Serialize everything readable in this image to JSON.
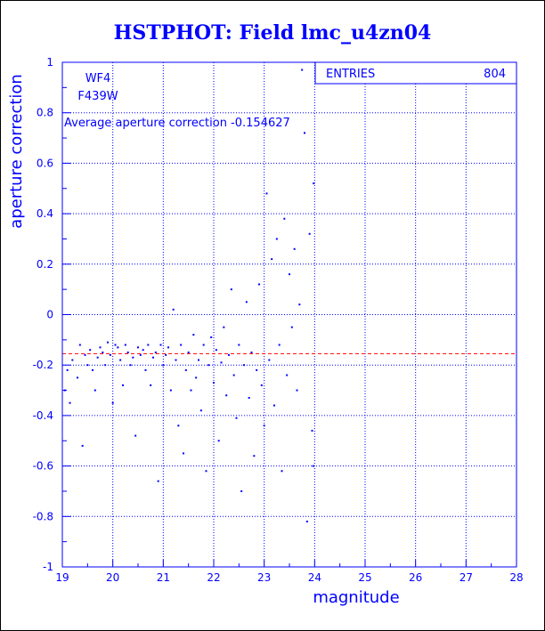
{
  "title": "HSTPHOT: Field lmc_u4zn04",
  "chart_data": {
    "type": "scatter",
    "xlabel": "magnitude",
    "ylabel": "aperture correction",
    "xlim": [
      19,
      28
    ],
    "ylim": [
      -1,
      1
    ],
    "xticks": [
      "19",
      "20",
      "21",
      "22",
      "23",
      "24",
      "25",
      "26",
      "27",
      "28"
    ],
    "yticks": [
      "-1",
      "-0.8",
      "-0.6",
      "-0.4",
      "-0.2",
      "0",
      "0.2",
      "0.4",
      "0.6",
      "0.8",
      "1"
    ],
    "grid": true,
    "annotations": {
      "chip": "WF4",
      "filter": "F439W",
      "average_label": "Average aperture correction -0.154627"
    },
    "stats": {
      "label": "ENTRIES",
      "value": "804"
    },
    "reference_line": {
      "y": -0.154627,
      "color": "#ff0000"
    },
    "series": [
      {
        "color": "#0000ff",
        "points": [
          [
            19.05,
            -0.3
          ],
          [
            19.1,
            -0.22
          ],
          [
            19.15,
            -0.35
          ],
          [
            19.2,
            -0.18
          ],
          [
            19.3,
            -0.25
          ],
          [
            19.35,
            -0.12
          ],
          [
            19.4,
            -0.52
          ],
          [
            19.45,
            -0.16
          ],
          [
            19.5,
            -0.2
          ],
          [
            19.55,
            -0.14
          ],
          [
            19.6,
            -0.22
          ],
          [
            19.65,
            -0.3
          ],
          [
            19.7,
            -0.17
          ],
          [
            19.75,
            -0.13
          ],
          [
            19.8,
            -0.15
          ],
          [
            19.85,
            -0.2
          ],
          [
            19.9,
            -0.11
          ],
          [
            19.95,
            -0.16
          ],
          [
            20.0,
            -0.35
          ],
          [
            20.05,
            -0.12
          ],
          [
            20.1,
            -0.13
          ],
          [
            20.15,
            -0.18
          ],
          [
            20.2,
            -0.28
          ],
          [
            20.25,
            -0.12
          ],
          [
            20.3,
            -0.15
          ],
          [
            20.35,
            -0.2
          ],
          [
            20.4,
            -0.17
          ],
          [
            20.45,
            -0.48
          ],
          [
            20.5,
            -0.13
          ],
          [
            20.55,
            -0.16
          ],
          [
            20.6,
            -0.14
          ],
          [
            20.65,
            -0.22
          ],
          [
            20.7,
            -0.12
          ],
          [
            20.75,
            -0.28
          ],
          [
            20.8,
            -0.17
          ],
          [
            20.85,
            -0.15
          ],
          [
            20.9,
            -0.66
          ],
          [
            20.95,
            -0.12
          ],
          [
            21.0,
            -0.2
          ],
          [
            21.05,
            -0.16
          ],
          [
            21.1,
            -0.13
          ],
          [
            21.15,
            -0.3
          ],
          [
            21.2,
            0.02
          ],
          [
            21.25,
            -0.18
          ],
          [
            21.3,
            -0.44
          ],
          [
            21.35,
            -0.12
          ],
          [
            21.4,
            -0.55
          ],
          [
            21.45,
            -0.22
          ],
          [
            21.5,
            -0.15
          ],
          [
            21.55,
            -0.3
          ],
          [
            21.6,
            -0.08
          ],
          [
            21.65,
            -0.25
          ],
          [
            21.7,
            -0.18
          ],
          [
            21.75,
            -0.38
          ],
          [
            21.8,
            -0.12
          ],
          [
            21.85,
            -0.62
          ],
          [
            21.9,
            -0.2
          ],
          [
            21.95,
            -0.09
          ],
          [
            22.0,
            -0.27
          ],
          [
            22.05,
            -0.14
          ],
          [
            22.1,
            -0.5
          ],
          [
            22.15,
            -0.19
          ],
          [
            22.2,
            -0.05
          ],
          [
            22.25,
            -0.32
          ],
          [
            22.3,
            -0.16
          ],
          [
            22.35,
            0.1
          ],
          [
            22.4,
            -0.24
          ],
          [
            22.45,
            -0.41
          ],
          [
            22.5,
            -0.12
          ],
          [
            22.55,
            -0.7
          ],
          [
            22.6,
            -0.2
          ],
          [
            22.65,
            0.05
          ],
          [
            22.7,
            -0.33
          ],
          [
            22.75,
            -0.15
          ],
          [
            22.8,
            -0.56
          ],
          [
            22.85,
            -0.22
          ],
          [
            22.9,
            0.12
          ],
          [
            22.95,
            -0.28
          ],
          [
            23.0,
            -0.44
          ],
          [
            23.05,
            0.48
          ],
          [
            23.1,
            -0.18
          ],
          [
            23.15,
            0.22
          ],
          [
            23.2,
            -0.36
          ],
          [
            23.25,
            0.3
          ],
          [
            23.3,
            -0.12
          ],
          [
            23.35,
            -0.62
          ],
          [
            23.4,
            0.38
          ],
          [
            23.45,
            -0.24
          ],
          [
            23.5,
            0.16
          ],
          [
            23.55,
            -0.05
          ],
          [
            23.6,
            0.26
          ],
          [
            23.65,
            -0.3
          ],
          [
            23.7,
            0.04
          ],
          [
            23.75,
            0.97
          ],
          [
            23.8,
            0.72
          ],
          [
            23.85,
            -0.82
          ],
          [
            23.9,
            0.32
          ],
          [
            23.95,
            -0.46
          ],
          [
            23.97,
            -0.6
          ],
          [
            23.98,
            0.52
          ]
        ]
      }
    ]
  }
}
